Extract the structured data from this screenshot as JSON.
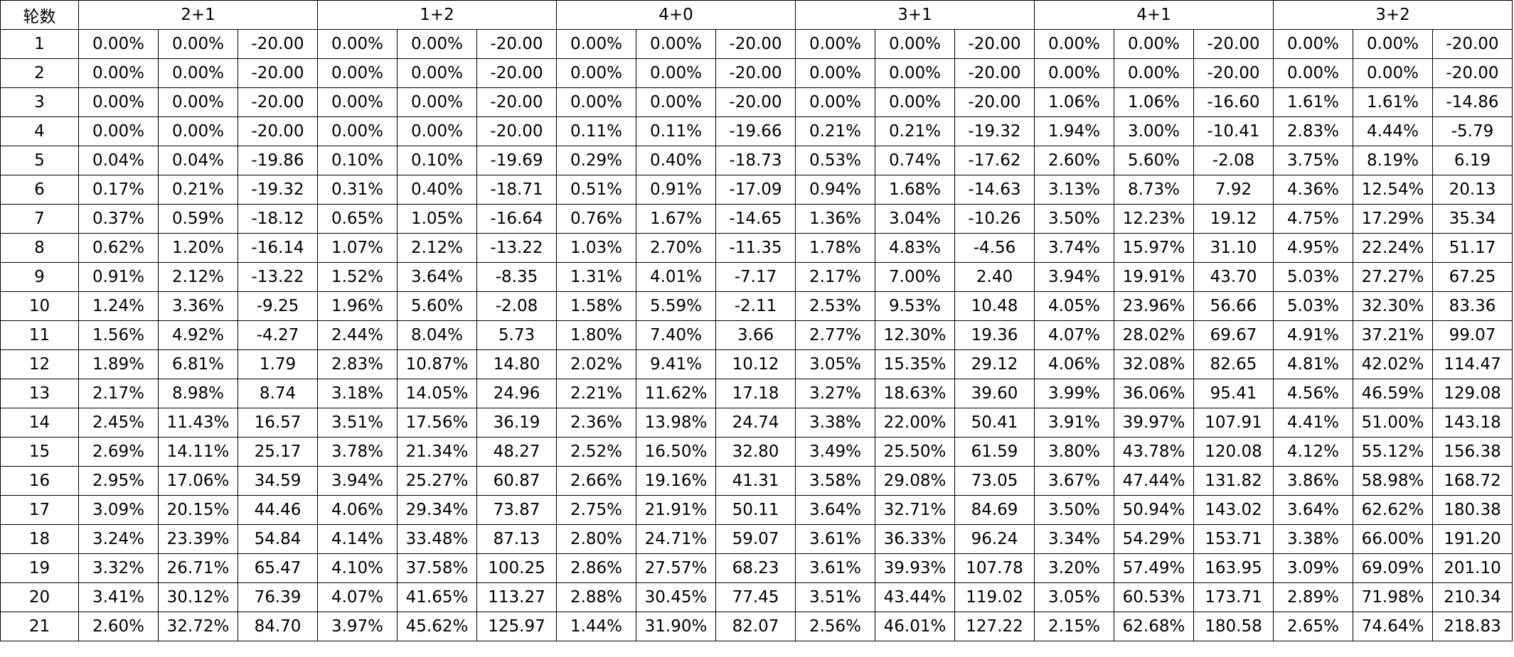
{
  "table": {
    "headers": [
      "轮数",
      "2+1",
      "1+2",
      "4+0",
      "3+1",
      "4+1",
      "3+2"
    ],
    "rows": [
      [
        "1",
        "0.00%",
        "0.00%",
        "-20.00",
        "0.00%",
        "0.00%",
        "-20.00",
        "0.00%",
        "0.00%",
        "-20.00",
        "0.00%",
        "0.00%",
        "-20.00",
        "0.00%",
        "0.00%",
        "-20.00",
        "0.00%",
        "0.00%",
        "-20.00"
      ],
      [
        "2",
        "0.00%",
        "0.00%",
        "-20.00",
        "0.00%",
        "0.00%",
        "-20.00",
        "0.00%",
        "0.00%",
        "-20.00",
        "0.00%",
        "0.00%",
        "-20.00",
        "0.00%",
        "0.00%",
        "-20.00",
        "0.00%",
        "0.00%",
        "-20.00"
      ],
      [
        "3",
        "0.00%",
        "0.00%",
        "-20.00",
        "0.00%",
        "0.00%",
        "-20.00",
        "0.00%",
        "0.00%",
        "-20.00",
        "0.00%",
        "0.00%",
        "-20.00",
        "1.06%",
        "1.06%",
        "-16.60",
        "1.61%",
        "1.61%",
        "-14.86"
      ],
      [
        "4",
        "0.00%",
        "0.00%",
        "-20.00",
        "0.00%",
        "0.00%",
        "-20.00",
        "0.11%",
        "0.11%",
        "-19.66",
        "0.21%",
        "0.21%",
        "-19.32",
        "1.94%",
        "3.00%",
        "-10.41",
        "2.83%",
        "4.44%",
        "-5.79"
      ],
      [
        "5",
        "0.04%",
        "0.04%",
        "-19.86",
        "0.10%",
        "0.10%",
        "-19.69",
        "0.29%",
        "0.40%",
        "-18.73",
        "0.53%",
        "0.74%",
        "-17.62",
        "2.60%",
        "5.60%",
        "-2.08",
        "3.75%",
        "8.19%",
        "6.19"
      ],
      [
        "6",
        "0.17%",
        "0.21%",
        "-19.32",
        "0.31%",
        "0.40%",
        "-18.71",
        "0.51%",
        "0.91%",
        "-17.09",
        "0.94%",
        "1.68%",
        "-14.63",
        "3.13%",
        "8.73%",
        "7.92",
        "4.36%",
        "12.54%",
        "20.13"
      ],
      [
        "7",
        "0.37%",
        "0.59%",
        "-18.12",
        "0.65%",
        "1.05%",
        "-16.64",
        "0.76%",
        "1.67%",
        "-14.65",
        "1.36%",
        "3.04%",
        "-10.26",
        "3.50%",
        "12.23%",
        "19.12",
        "4.75%",
        "17.29%",
        "35.34"
      ],
      [
        "8",
        "0.62%",
        "1.20%",
        "-16.14",
        "1.07%",
        "2.12%",
        "-13.22",
        "1.03%",
        "2.70%",
        "-11.35",
        "1.78%",
        "4.83%",
        "-4.56",
        "3.74%",
        "15.97%",
        "31.10",
        "4.95%",
        "22.24%",
        "51.17"
      ],
      [
        "9",
        "0.91%",
        "2.12%",
        "-13.22",
        "1.52%",
        "3.64%",
        "-8.35",
        "1.31%",
        "4.01%",
        "-7.17",
        "2.17%",
        "7.00%",
        "2.40",
        "3.94%",
        "19.91%",
        "43.70",
        "5.03%",
        "27.27%",
        "67.25"
      ],
      [
        "10",
        "1.24%",
        "3.36%",
        "-9.25",
        "1.96%",
        "5.60%",
        "-2.08",
        "1.58%",
        "5.59%",
        "-2.11",
        "2.53%",
        "9.53%",
        "10.48",
        "4.05%",
        "23.96%",
        "56.66",
        "5.03%",
        "32.30%",
        "83.36"
      ],
      [
        "11",
        "1.56%",
        "4.92%",
        "-4.27",
        "2.44%",
        "8.04%",
        "5.73",
        "1.80%",
        "7.40%",
        "3.66",
        "2.77%",
        "12.30%",
        "19.36",
        "4.07%",
        "28.02%",
        "69.67",
        "4.91%",
        "37.21%",
        "99.07"
      ],
      [
        "12",
        "1.89%",
        "6.81%",
        "1.79",
        "2.83%",
        "10.87%",
        "14.80",
        "2.02%",
        "9.41%",
        "10.12",
        "3.05%",
        "15.35%",
        "29.12",
        "4.06%",
        "32.08%",
        "82.65",
        "4.81%",
        "42.02%",
        "114.47"
      ],
      [
        "13",
        "2.17%",
        "8.98%",
        "8.74",
        "3.18%",
        "14.05%",
        "24.96",
        "2.21%",
        "11.62%",
        "17.18",
        "3.27%",
        "18.63%",
        "39.60",
        "3.99%",
        "36.06%",
        "95.41",
        "4.56%",
        "46.59%",
        "129.08"
      ],
      [
        "14",
        "2.45%",
        "11.43%",
        "16.57",
        "3.51%",
        "17.56%",
        "36.19",
        "2.36%",
        "13.98%",
        "24.74",
        "3.38%",
        "22.00%",
        "50.41",
        "3.91%",
        "39.97%",
        "107.91",
        "4.41%",
        "51.00%",
        "143.18"
      ],
      [
        "15",
        "2.69%",
        "14.11%",
        "25.17",
        "3.78%",
        "21.34%",
        "48.27",
        "2.52%",
        "16.50%",
        "32.80",
        "3.49%",
        "25.50%",
        "61.59",
        "3.80%",
        "43.78%",
        "120.08",
        "4.12%",
        "55.12%",
        "156.38"
      ],
      [
        "16",
        "2.95%",
        "17.06%",
        "34.59",
        "3.94%",
        "25.27%",
        "60.87",
        "2.66%",
        "19.16%",
        "41.31",
        "3.58%",
        "29.08%",
        "73.05",
        "3.67%",
        "47.44%",
        "131.82",
        "3.86%",
        "58.98%",
        "168.72"
      ],
      [
        "17",
        "3.09%",
        "20.15%",
        "44.46",
        "4.06%",
        "29.34%",
        "73.87",
        "2.75%",
        "21.91%",
        "50.11",
        "3.64%",
        "32.71%",
        "84.69",
        "3.50%",
        "50.94%",
        "143.02",
        "3.64%",
        "62.62%",
        "180.38"
      ],
      [
        "18",
        "3.24%",
        "23.39%",
        "54.84",
        "4.14%",
        "33.48%",
        "87.13",
        "2.80%",
        "24.71%",
        "59.07",
        "3.61%",
        "36.33%",
        "96.24",
        "3.34%",
        "54.29%",
        "153.71",
        "3.38%",
        "66.00%",
        "191.20"
      ],
      [
        "19",
        "3.32%",
        "26.71%",
        "65.47",
        "4.10%",
        "37.58%",
        "100.25",
        "2.86%",
        "27.57%",
        "68.23",
        "3.61%",
        "39.93%",
        "107.78",
        "3.20%",
        "57.49%",
        "163.95",
        "3.09%",
        "69.09%",
        "201.10"
      ],
      [
        "20",
        "3.41%",
        "30.12%",
        "76.39",
        "4.07%",
        "41.65%",
        "113.27",
        "2.88%",
        "30.45%",
        "77.45",
        "3.51%",
        "43.44%",
        "119.02",
        "3.05%",
        "60.53%",
        "173.71",
        "2.89%",
        "71.98%",
        "210.34"
      ],
      [
        "21",
        "2.60%",
        "32.72%",
        "84.70",
        "3.97%",
        "45.62%",
        "125.97",
        "1.44%",
        "31.90%",
        "82.07",
        "2.56%",
        "46.01%",
        "127.22",
        "2.15%",
        "62.68%",
        "180.58",
        "2.65%",
        "74.64%",
        "218.83"
      ]
    ]
  }
}
